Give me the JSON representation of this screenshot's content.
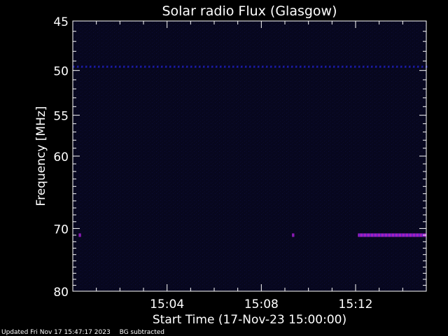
{
  "chart_data": {
    "type": "heatmap",
    "title": "Solar radio Flux (Glasgow)",
    "xlabel": "Start Time (17-Nov-23 15:00:00)",
    "ylabel": "Frequency [MHz]",
    "x_unit": "minutes after 15:00:00",
    "xlim": [
      0,
      15
    ],
    "x_ticks": [
      {
        "value": 4,
        "label": "15:04"
      },
      {
        "value": 8,
        "label": "15:08"
      },
      {
        "value": 12,
        "label": "15:12"
      }
    ],
    "ylim": [
      45,
      80
    ],
    "y_axis_inverted": true,
    "y_scale": "log",
    "y_ticks": [
      {
        "value": 45,
        "label": "45"
      },
      {
        "value": 50,
        "label": "50"
      },
      {
        "value": 55,
        "label": "55"
      },
      {
        "value": 60,
        "label": "60"
      },
      {
        "value": 70,
        "label": "70"
      },
      {
        "value": 80,
        "label": "80"
      }
    ],
    "background_color": "#07071e",
    "emission_bands": [
      {
        "frequency": 49.6,
        "x_start": 0.0,
        "x_end": 15.0,
        "intensity": "low",
        "color": "#1a1aa0"
      },
      {
        "frequency": 71.0,
        "x_start": 0.25,
        "x_end": 0.35,
        "intensity": "medium",
        "color": "#8a1ab4"
      },
      {
        "frequency": 71.0,
        "x_start": 9.3,
        "x_end": 9.4,
        "intensity": "medium",
        "color": "#8a1ab4"
      },
      {
        "frequency": 71.0,
        "x_start": 12.1,
        "x_end": 15.0,
        "intensity": "high",
        "color": "#a020c0"
      }
    ]
  },
  "footer": {
    "updated": "Updated Fri Nov 17 15:47:17 2023",
    "mode": "BG subtracted"
  },
  "colors": {
    "axis": "#ffffff",
    "text": "#ffffff",
    "page_background": "#000000"
  }
}
